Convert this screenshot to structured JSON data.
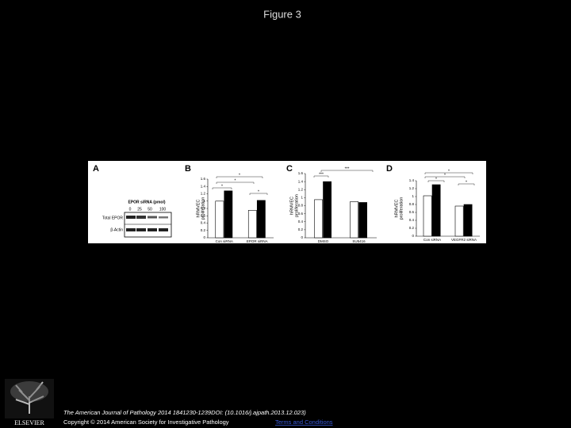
{
  "title": "Figure 3",
  "blot": {
    "panel": "A",
    "title": "EPOR siRNA (pmol)",
    "lanes": [
      "0",
      "25",
      "50",
      "100"
    ],
    "rows": [
      "Total EPOR",
      "β-Actin"
    ]
  },
  "chart_data": [
    {
      "type": "bar",
      "panel": "B",
      "y_label": [
        "hRMVEC",
        "proliferation"
      ],
      "categories": [
        "Con siRNA",
        "EPOR siRNA"
      ],
      "series": [
        {
          "color": "#ffffff",
          "values": [
            1.0,
            0.75
          ]
        },
        {
          "color": "#000000",
          "values": [
            1.28,
            1.02
          ]
        }
      ],
      "ylim": [
        0,
        1.6
      ],
      "yticks": [
        0,
        0.2,
        0.4,
        0.6,
        0.8,
        1,
        1.2,
        1.4,
        1.6
      ],
      "annotations": [
        "*",
        "*",
        "*",
        "*"
      ]
    },
    {
      "type": "bar",
      "panel": "C",
      "y_label": [
        "hRMVEC",
        "proliferation"
      ],
      "categories": [
        "DMSO",
        "SU5416"
      ],
      "series": [
        {
          "color": "#ffffff",
          "values": [
            0.95,
            0.9
          ]
        },
        {
          "color": "#000000",
          "values": [
            1.4,
            0.88
          ]
        }
      ],
      "ylim": [
        0,
        1.6
      ],
      "yticks": [
        0,
        0.2,
        0.4,
        0.6,
        0.8,
        1,
        1.2,
        1.4,
        1.6
      ],
      "annotations": [
        "***",
        "***"
      ]
    },
    {
      "type": "bar",
      "panel": "D",
      "y_label": [
        "hRMVEC",
        "proliferation"
      ],
      "categories": [
        "Con siRNA",
        "VEGFR2 siRNA"
      ],
      "series": [
        {
          "color": "#ffffff",
          "values": [
            1.02,
            0.76
          ]
        },
        {
          "color": "#000000",
          "values": [
            1.3,
            0.8
          ]
        }
      ],
      "ylim": [
        0,
        1.4
      ],
      "yticks": [
        0,
        0.2,
        0.4,
        0.6,
        0.8,
        1,
        1.2,
        1.4
      ],
      "annotations": [
        "*",
        "*",
        "*",
        "*"
      ]
    }
  ],
  "footer": {
    "citation": "The American Journal of Pathology 2014 1841230-1239DOI: (10.1016/j.ajpath.2013.12.023)",
    "copyright": "Copyright © 2014 American Society for Investigative Pathology",
    "link": "Terms and Conditions",
    "publisher": "ELSEVIER"
  }
}
